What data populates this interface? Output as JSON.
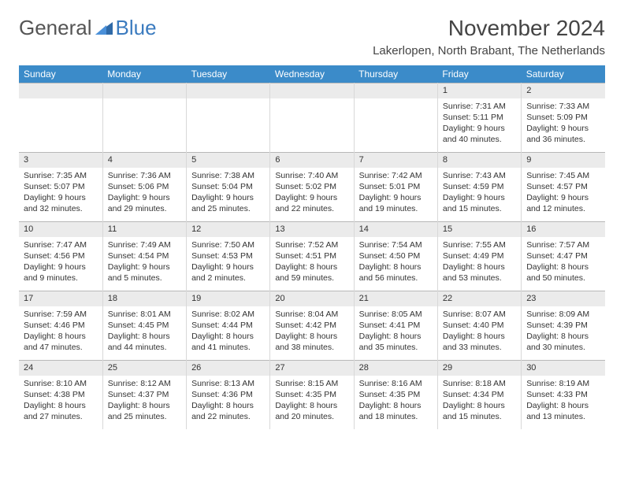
{
  "logo": {
    "part1": "General",
    "part2": "Blue"
  },
  "title": "November 2024",
  "location": "Lakerlopen, North Brabant, The Netherlands",
  "colors": {
    "header_bg": "#3b8bc9",
    "header_text": "#ffffff",
    "daynum_bg": "#ebebeb",
    "border": "#d8d8d8",
    "border_top": "#b8b8b8",
    "text": "#333333",
    "logo_gray": "#555555",
    "logo_blue": "#3b7bbf",
    "page_bg": "#ffffff"
  },
  "day_headers": [
    "Sunday",
    "Monday",
    "Tuesday",
    "Wednesday",
    "Thursday",
    "Friday",
    "Saturday"
  ],
  "weeks": [
    [
      {
        "empty": true
      },
      {
        "empty": true
      },
      {
        "empty": true
      },
      {
        "empty": true
      },
      {
        "empty": true
      },
      {
        "num": "1",
        "sunrise": "Sunrise: 7:31 AM",
        "sunset": "Sunset: 5:11 PM",
        "daylight": "Daylight: 9 hours and 40 minutes."
      },
      {
        "num": "2",
        "sunrise": "Sunrise: 7:33 AM",
        "sunset": "Sunset: 5:09 PM",
        "daylight": "Daylight: 9 hours and 36 minutes."
      }
    ],
    [
      {
        "num": "3",
        "sunrise": "Sunrise: 7:35 AM",
        "sunset": "Sunset: 5:07 PM",
        "daylight": "Daylight: 9 hours and 32 minutes."
      },
      {
        "num": "4",
        "sunrise": "Sunrise: 7:36 AM",
        "sunset": "Sunset: 5:06 PM",
        "daylight": "Daylight: 9 hours and 29 minutes."
      },
      {
        "num": "5",
        "sunrise": "Sunrise: 7:38 AM",
        "sunset": "Sunset: 5:04 PM",
        "daylight": "Daylight: 9 hours and 25 minutes."
      },
      {
        "num": "6",
        "sunrise": "Sunrise: 7:40 AM",
        "sunset": "Sunset: 5:02 PM",
        "daylight": "Daylight: 9 hours and 22 minutes."
      },
      {
        "num": "7",
        "sunrise": "Sunrise: 7:42 AM",
        "sunset": "Sunset: 5:01 PM",
        "daylight": "Daylight: 9 hours and 19 minutes."
      },
      {
        "num": "8",
        "sunrise": "Sunrise: 7:43 AM",
        "sunset": "Sunset: 4:59 PM",
        "daylight": "Daylight: 9 hours and 15 minutes."
      },
      {
        "num": "9",
        "sunrise": "Sunrise: 7:45 AM",
        "sunset": "Sunset: 4:57 PM",
        "daylight": "Daylight: 9 hours and 12 minutes."
      }
    ],
    [
      {
        "num": "10",
        "sunrise": "Sunrise: 7:47 AM",
        "sunset": "Sunset: 4:56 PM",
        "daylight": "Daylight: 9 hours and 9 minutes."
      },
      {
        "num": "11",
        "sunrise": "Sunrise: 7:49 AM",
        "sunset": "Sunset: 4:54 PM",
        "daylight": "Daylight: 9 hours and 5 minutes."
      },
      {
        "num": "12",
        "sunrise": "Sunrise: 7:50 AM",
        "sunset": "Sunset: 4:53 PM",
        "daylight": "Daylight: 9 hours and 2 minutes."
      },
      {
        "num": "13",
        "sunrise": "Sunrise: 7:52 AM",
        "sunset": "Sunset: 4:51 PM",
        "daylight": "Daylight: 8 hours and 59 minutes."
      },
      {
        "num": "14",
        "sunrise": "Sunrise: 7:54 AM",
        "sunset": "Sunset: 4:50 PM",
        "daylight": "Daylight: 8 hours and 56 minutes."
      },
      {
        "num": "15",
        "sunrise": "Sunrise: 7:55 AM",
        "sunset": "Sunset: 4:49 PM",
        "daylight": "Daylight: 8 hours and 53 minutes."
      },
      {
        "num": "16",
        "sunrise": "Sunrise: 7:57 AM",
        "sunset": "Sunset: 4:47 PM",
        "daylight": "Daylight: 8 hours and 50 minutes."
      }
    ],
    [
      {
        "num": "17",
        "sunrise": "Sunrise: 7:59 AM",
        "sunset": "Sunset: 4:46 PM",
        "daylight": "Daylight: 8 hours and 47 minutes."
      },
      {
        "num": "18",
        "sunrise": "Sunrise: 8:01 AM",
        "sunset": "Sunset: 4:45 PM",
        "daylight": "Daylight: 8 hours and 44 minutes."
      },
      {
        "num": "19",
        "sunrise": "Sunrise: 8:02 AM",
        "sunset": "Sunset: 4:44 PM",
        "daylight": "Daylight: 8 hours and 41 minutes."
      },
      {
        "num": "20",
        "sunrise": "Sunrise: 8:04 AM",
        "sunset": "Sunset: 4:42 PM",
        "daylight": "Daylight: 8 hours and 38 minutes."
      },
      {
        "num": "21",
        "sunrise": "Sunrise: 8:05 AM",
        "sunset": "Sunset: 4:41 PM",
        "daylight": "Daylight: 8 hours and 35 minutes."
      },
      {
        "num": "22",
        "sunrise": "Sunrise: 8:07 AM",
        "sunset": "Sunset: 4:40 PM",
        "daylight": "Daylight: 8 hours and 33 minutes."
      },
      {
        "num": "23",
        "sunrise": "Sunrise: 8:09 AM",
        "sunset": "Sunset: 4:39 PM",
        "daylight": "Daylight: 8 hours and 30 minutes."
      }
    ],
    [
      {
        "num": "24",
        "sunrise": "Sunrise: 8:10 AM",
        "sunset": "Sunset: 4:38 PM",
        "daylight": "Daylight: 8 hours and 27 minutes."
      },
      {
        "num": "25",
        "sunrise": "Sunrise: 8:12 AM",
        "sunset": "Sunset: 4:37 PM",
        "daylight": "Daylight: 8 hours and 25 minutes."
      },
      {
        "num": "26",
        "sunrise": "Sunrise: 8:13 AM",
        "sunset": "Sunset: 4:36 PM",
        "daylight": "Daylight: 8 hours and 22 minutes."
      },
      {
        "num": "27",
        "sunrise": "Sunrise: 8:15 AM",
        "sunset": "Sunset: 4:35 PM",
        "daylight": "Daylight: 8 hours and 20 minutes."
      },
      {
        "num": "28",
        "sunrise": "Sunrise: 8:16 AM",
        "sunset": "Sunset: 4:35 PM",
        "daylight": "Daylight: 8 hours and 18 minutes."
      },
      {
        "num": "29",
        "sunrise": "Sunrise: 8:18 AM",
        "sunset": "Sunset: 4:34 PM",
        "daylight": "Daylight: 8 hours and 15 minutes."
      },
      {
        "num": "30",
        "sunrise": "Sunrise: 8:19 AM",
        "sunset": "Sunset: 4:33 PM",
        "daylight": "Daylight: 8 hours and 13 minutes."
      }
    ]
  ]
}
